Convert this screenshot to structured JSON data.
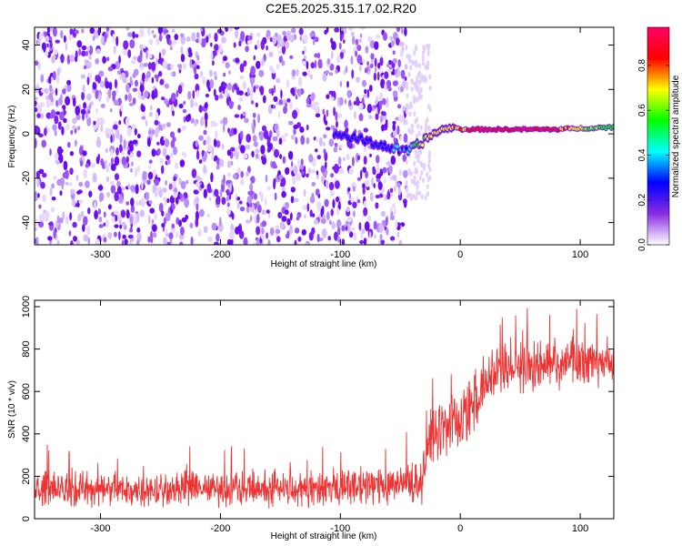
{
  "title": "C2E5.2025.315.17.02.R20",
  "chart_data": [
    {
      "type": "heatmap",
      "title": "C2E5.2025.315.17.02.R20",
      "xlabel": "Height of straight line (km)",
      "ylabel": "Frequency (Hz)",
      "xlim": [
        -355,
        128
      ],
      "ylim": [
        -50,
        48
      ],
      "xticks": [
        -300,
        -200,
        -100,
        0,
        100
      ],
      "xtick_labels": [
        "-300",
        "-200",
        "-100",
        "0",
        "100"
      ],
      "yticks": [
        -40,
        -20,
        0,
        20,
        40
      ],
      "ytick_labels": [
        "-40",
        "-20",
        "0",
        "20",
        "40"
      ],
      "colorbar": {
        "label": "Normalized spectral amplitude",
        "range": [
          0,
          0.97
        ],
        "ticks": [
          0.0,
          0.2,
          0.4,
          0.6,
          0.8
        ],
        "tick_labels": [
          "0.0",
          "0.2",
          "0.4",
          "0.6",
          "0.8"
        ],
        "colormap": [
          "#ffffff",
          "#e0c8ff",
          "#8a2be2",
          "#0000ff",
          "#00ffff",
          "#00ff00",
          "#ffff00",
          "#ff0000",
          "#ff0066"
        ]
      },
      "features": {
        "noise_region_x": [
          -355,
          -45
        ],
        "signal_track": {
          "x": [
            -105,
            -80,
            -60,
            -45,
            -35,
            -25,
            -15,
            -5,
            0,
            20,
            50,
            80,
            100,
            128
          ],
          "frequency": [
            0,
            -3,
            -6,
            -8,
            -5,
            -1,
            2,
            3,
            2,
            2,
            2,
            2,
            2.5,
            3
          ],
          "peak_amplitude": [
            0.2,
            0.3,
            0.3,
            0.35,
            0.6,
            0.75,
            0.75,
            0.8,
            0.85,
            0.9,
            0.95,
            0.9,
            0.7,
            0.6
          ]
        }
      }
    },
    {
      "type": "line",
      "xlabel": "Height of straight line (km)",
      "ylabel": "SNR (10 * v/v)",
      "xlim": [
        -355,
        128
      ],
      "ylim": [
        0,
        1030
      ],
      "xticks": [
        -300,
        -200,
        -100,
        0,
        100
      ],
      "xtick_labels": [
        "-300",
        "-200",
        "-100",
        "0",
        "100"
      ],
      "yticks": [
        0,
        200,
        400,
        600,
        800,
        1000
      ],
      "ytick_labels": [
        "0",
        "200",
        "400",
        "600",
        "800",
        "1000"
      ],
      "series": [
        {
          "name": "SNR",
          "color": "#ee3333",
          "envelope": {
            "x": [
              -355,
              -300,
              -200,
              -100,
              -60,
              -32,
              -25,
              -15,
              0,
              10,
              20,
              30,
              50,
              80,
              100,
              128
            ],
            "mean": [
              140,
              140,
              140,
              150,
              165,
              175,
              390,
              430,
              470,
              520,
              600,
              700,
              720,
              730,
              740,
              740
            ],
            "spread": [
              95,
              95,
              95,
              100,
              105,
              110,
              140,
              160,
              180,
              190,
              170,
              130,
              130,
              130,
              130,
              130
            ]
          }
        }
      ]
    }
  ]
}
